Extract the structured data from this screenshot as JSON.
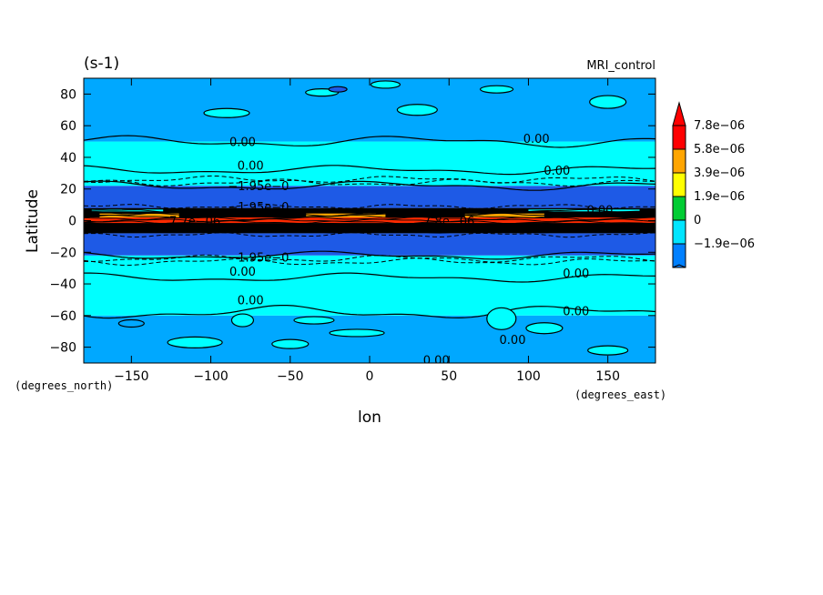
{
  "chart_data": {
    "type": "heatmap",
    "title": "",
    "units_label": "(s-1)",
    "model_label": "MRI_control",
    "xlabel": "lon",
    "ylabel": "Latitude",
    "x_units": "(degrees_east)",
    "y_units": "(degrees_north)",
    "xlim": [
      -180,
      180
    ],
    "ylim": [
      -90,
      90
    ],
    "x_ticks": [
      -150,
      -100,
      -50,
      0,
      50,
      100,
      150
    ],
    "x_tick_labels": [
      "−150",
      "−100",
      "−50",
      "0",
      "50",
      "100",
      "150"
    ],
    "y_ticks": [
      80,
      60,
      40,
      20,
      0,
      -20,
      -40,
      -60,
      -80
    ],
    "y_tick_labels": [
      "80",
      "60",
      "40",
      "20",
      "0",
      "−20",
      "−40",
      "−60",
      "−80"
    ],
    "colorbar": {
      "levels": [
        -1.9e-06,
        0,
        1.9e-06,
        3.9e-06,
        5.8e-06,
        7.8e-06
      ],
      "labels": [
        "−1.9e−06",
        "0",
        "1.9e−06",
        "3.9e−06",
        "5.8e−06",
        "7.8e−06"
      ],
      "colors": [
        "#0080ff",
        "#00e5ff",
        "#00cc33",
        "#ffff00",
        "#ffa500",
        "#ff0000"
      ],
      "under_color": "#1a50f0",
      "over_color": "#ff0000"
    },
    "zonal_bands": [
      {
        "lat": [
          -90,
          -60
        ],
        "color": "#00a8ff"
      },
      {
        "lat": [
          -60,
          -22
        ],
        "color": "#00ffff"
      },
      {
        "lat": [
          -22,
          -8
        ],
        "color": "#1e5ae6"
      },
      {
        "lat": [
          -8,
          8
        ],
        "color": "#000000"
      },
      {
        "lat": [
          8,
          22
        ],
        "color": "#1e5ae6"
      },
      {
        "lat": [
          22,
          50
        ],
        "color": "#00ffff"
      },
      {
        "lat": [
          50,
          90
        ],
        "color": "#00a8ff"
      }
    ],
    "contour_labels": [
      {
        "lon": -80,
        "lat": 50,
        "text": "0.00"
      },
      {
        "lon": 105,
        "lat": 52,
        "text": "0.00"
      },
      {
        "lon": -75,
        "lat": 35,
        "text": "0.00"
      },
      {
        "lon": 118,
        "lat": 32,
        "text": "0.00"
      },
      {
        "lon": -70,
        "lat": 22,
        "text": "−1.95e−0"
      },
      {
        "lon": -70,
        "lat": 9,
        "text": "−1.95e−0"
      },
      {
        "lon": -70,
        "lat": -23,
        "text": "−1.95e−0"
      },
      {
        "lon": -80,
        "lat": -32,
        "text": "0.00"
      },
      {
        "lon": 130,
        "lat": -33,
        "text": "0.00"
      },
      {
        "lon": -75,
        "lat": -50,
        "text": "0.00"
      },
      {
        "lon": 130,
        "lat": -57,
        "text": "0.00"
      },
      {
        "lon": 90,
        "lat": -75,
        "text": "0.00"
      },
      {
        "lon": 42,
        "lat": -88,
        "text": "0.00"
      },
      {
        "lon": -110,
        "lat": 0,
        "text": "7.7e−06"
      },
      {
        "lon": 50,
        "lat": 0,
        "text": "7.8e−06"
      },
      {
        "lon": 145,
        "lat": 7,
        "text": "0.00"
      }
    ]
  }
}
